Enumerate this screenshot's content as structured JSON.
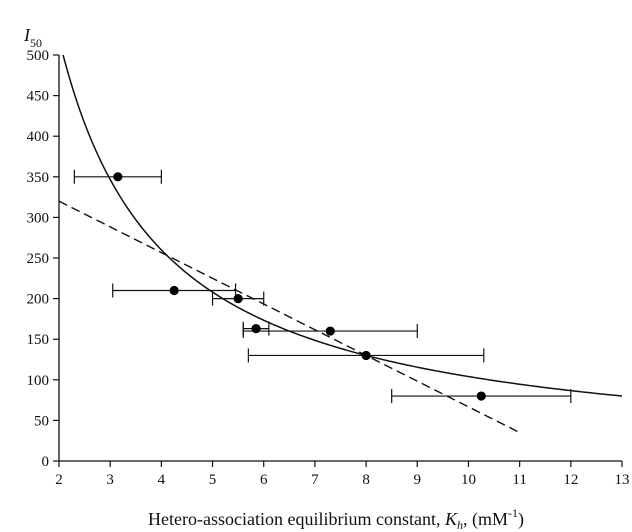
{
  "chart_data": {
    "type": "scatter",
    "xlabel": "Hetero-association equilibrium constant, K_h, (mM⁻¹)",
    "xlabel_parts": {
      "main": "Hetero-association equilibrium constant, ",
      "symbol": "K",
      "symbol_sub": "h",
      "unit_open": ", (mM",
      "unit_sup": "-1",
      "unit_close": ")"
    },
    "ylabel": "I50",
    "ylabel_parts": {
      "symbol": "I",
      "sub": "50"
    },
    "xlim": [
      2,
      13
    ],
    "ylim": [
      0,
      500
    ],
    "xticks": [
      2,
      3,
      4,
      5,
      6,
      7,
      8,
      9,
      10,
      11,
      12,
      13
    ],
    "yticks": [
      0,
      50,
      100,
      150,
      200,
      250,
      300,
      350,
      400,
      450,
      500
    ],
    "grid": false,
    "points": [
      {
        "x": 3.15,
        "y": 350,
        "xerr_low": 2.3,
        "xerr_high": 4.0
      },
      {
        "x": 4.25,
        "y": 210,
        "xerr_low": 3.05,
        "xerr_high": 5.45
      },
      {
        "x": 5.5,
        "y": 200,
        "xerr_low": 5.0,
        "xerr_high": 6.0
      },
      {
        "x": 5.85,
        "y": 163,
        "xerr_low": 5.6,
        "xerr_high": 6.1
      },
      {
        "x": 7.3,
        "y": 160,
        "xerr_low": 5.6,
        "xerr_high": 9.0
      },
      {
        "x": 8.0,
        "y": 130,
        "xerr_low": 5.7,
        "xerr_high": 10.3
      },
      {
        "x": 10.25,
        "y": 80,
        "xerr_low": 8.5,
        "xerr_high": 12.0
      }
    ],
    "fits": [
      {
        "style": "solid",
        "model": "y = 1040 / x",
        "x_range": [
          2.08,
          13
        ]
      },
      {
        "style": "dashed",
        "model": "linear",
        "points": [
          [
            2,
            320
          ],
          [
            11,
            35
          ]
        ]
      }
    ]
  }
}
